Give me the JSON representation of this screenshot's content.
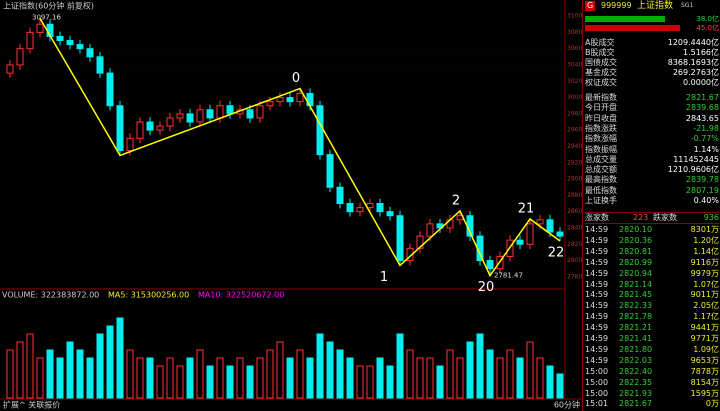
{
  "chart_data": {
    "type": "candlestick",
    "title": "上证指数(60分钟 前复权)",
    "ylim": [
      2770,
      3105
    ],
    "yticks": [
      3100,
      3080,
      3060,
      3040,
      3020,
      3000,
      2980,
      2960,
      2940,
      2920,
      2900,
      2880,
      2860,
      2840,
      2820,
      2800,
      2780
    ],
    "ohlc": [
      [
        3030,
        3046,
        3024,
        3040
      ],
      [
        3040,
        3066,
        3034,
        3060
      ],
      [
        3060,
        3086,
        3054,
        3080
      ],
      [
        3080,
        3097.16,
        3074,
        3090
      ],
      [
        3090,
        3096,
        3069,
        3075
      ],
      [
        3075,
        3081,
        3064,
        3070
      ],
      [
        3070,
        3076,
        3059,
        3065
      ],
      [
        3065,
        3071,
        3054,
        3060
      ],
      [
        3060,
        3066,
        3044,
        3050
      ],
      [
        3050,
        3056,
        3024,
        3030
      ],
      [
        3030,
        3036,
        2984,
        2990
      ],
      [
        2990,
        2996,
        2929,
        2935
      ],
      [
        2935,
        2956,
        2929,
        2950
      ],
      [
        2950,
        2976,
        2944,
        2970
      ],
      [
        2970,
        2976,
        2954,
        2960
      ],
      [
        2960,
        2971,
        2954,
        2965
      ],
      [
        2965,
        2981,
        2959,
        2975
      ],
      [
        2975,
        2986,
        2969,
        2980
      ],
      [
        2980,
        2986,
        2964,
        2970
      ],
      [
        2970,
        2991,
        2964,
        2985
      ],
      [
        2985,
        2991,
        2969,
        2975
      ],
      [
        2975,
        2996,
        2969,
        2990
      ],
      [
        2990,
        2996,
        2974,
        2980
      ],
      [
        2980,
        2991,
        2974,
        2985
      ],
      [
        2985,
        2991,
        2969,
        2975
      ],
      [
        2975,
        2996,
        2969,
        2990
      ],
      [
        2990,
        3001,
        2984,
        2995
      ],
      [
        2995,
        3006,
        2989,
        3000
      ],
      [
        3000,
        3006,
        2989,
        2995
      ],
      [
        2995,
        3011,
        2989,
        3005
      ],
      [
        3005,
        3011,
        2984,
        2990
      ],
      [
        2990,
        2996,
        2924,
        2930
      ],
      [
        2930,
        2936,
        2884,
        2890
      ],
      [
        2890,
        2896,
        2864,
        2870
      ],
      [
        2870,
        2876,
        2854,
        2860
      ],
      [
        2860,
        2871,
        2854,
        2865
      ],
      [
        2865,
        2876,
        2859,
        2870
      ],
      [
        2870,
        2876,
        2854,
        2860
      ],
      [
        2860,
        2866,
        2849,
        2855
      ],
      [
        2855,
        2861,
        2794,
        2800
      ],
      [
        2800,
        2821,
        2794,
        2815
      ],
      [
        2815,
        2836,
        2809,
        2830
      ],
      [
        2830,
        2851,
        2824,
        2845
      ],
      [
        2845,
        2851,
        2834,
        2840
      ],
      [
        2840,
        2856,
        2834,
        2850
      ],
      [
        2850,
        2861,
        2844,
        2855
      ],
      [
        2855,
        2861,
        2824,
        2830
      ],
      [
        2830,
        2836,
        2794,
        2800
      ],
      [
        2800,
        2806,
        2781.47,
        2790
      ],
      [
        2790,
        2811,
        2784,
        2805
      ],
      [
        2805,
        2831,
        2799,
        2825
      ],
      [
        2825,
        2831,
        2814,
        2820
      ],
      [
        2820,
        2851,
        2814,
        2845
      ],
      [
        2845,
        2856,
        2839,
        2850
      ],
      [
        2850,
        2856,
        2829,
        2835
      ],
      [
        2835,
        2841,
        2824,
        2830
      ]
    ],
    "volume": {
      "label": "VOLUME: 322383872.00",
      "ma5": "MA5: 315300256.00",
      "ma10": "MA10: 322520672.00",
      "ylim": [
        0,
        12
      ],
      "values": [
        6,
        7,
        8,
        5,
        6,
        5,
        7,
        6,
        5,
        8,
        9,
        10,
        6,
        5,
        5,
        4,
        5,
        4,
        5,
        6,
        4,
        5,
        4,
        5,
        4,
        5,
        6,
        7,
        5,
        6,
        5,
        8,
        7,
        6,
        5,
        4,
        4,
        5,
        4,
        8,
        6,
        5,
        5,
        4,
        6,
        5,
        7,
        8,
        6,
        5,
        6,
        5,
        7,
        5,
        4,
        3
      ]
    },
    "waves": [
      "0",
      "1",
      "2",
      "20",
      "21",
      "22"
    ],
    "footer": {
      "left": "扩展^ 关联报价",
      "right": "60分钟"
    }
  },
  "panel": {
    "badge": "G",
    "code": "999999",
    "name": "上证指数",
    "tag": "SG1",
    "bars": [
      {
        "value": 38.0,
        "label": "38.0亿"
      },
      {
        "value": 45.0,
        "label": "45.0亿"
      }
    ],
    "stats": [
      [
        "A股成交",
        "1209.4440亿"
      ],
      [
        "B股成交",
        "1.5166亿"
      ],
      [
        "国债成交",
        "8368.1693亿"
      ],
      [
        "基金成交",
        "269.2763亿"
      ],
      [
        "权证成交",
        "0.0000亿"
      ],
      [
        "最新指数",
        "2821.67"
      ],
      [
        "今日开盘",
        "2839.68"
      ],
      [
        "昨日收盘",
        "2843.65"
      ],
      [
        "指数涨跌",
        "-21.98"
      ],
      [
        "指数涨幅",
        "-0.77%"
      ],
      [
        "指数振幅",
        "1.14%"
      ],
      [
        "总成交量",
        "111452445"
      ],
      [
        "总成交额",
        "1210.9606亿"
      ],
      [
        "最高指数",
        "2839.78"
      ],
      [
        "最低指数",
        "2807.19"
      ],
      [
        "上证换手",
        "0.40%"
      ]
    ],
    "breadth": {
      "up_label": "涨家数",
      "up": "223",
      "down_label": "跌家数",
      "down": "936"
    },
    "ticks": [
      [
        "14:59",
        "2820.10",
        "8301万"
      ],
      [
        "14:59",
        "2820.36",
        "1.20亿"
      ],
      [
        "14:59",
        "2820.81",
        "1.14亿"
      ],
      [
        "14:59",
        "2820.99",
        "9116万"
      ],
      [
        "14:59",
        "2820.94",
        "9979万"
      ],
      [
        "14:59",
        "2821.14",
        "1.07亿"
      ],
      [
        "14:59",
        "2821.45",
        "9011万"
      ],
      [
        "14:59",
        "2822.33",
        "2.05亿"
      ],
      [
        "14:59",
        "2821.78",
        "1.17亿"
      ],
      [
        "14:59",
        "2821.21",
        "9441万"
      ],
      [
        "14:59",
        "2821.41",
        "9771万"
      ],
      [
        "14:59",
        "2821.80",
        "1.09亿"
      ],
      [
        "14:59",
        "2822.03",
        "9653万"
      ],
      [
        "15:00",
        "2822.40",
        "7878万"
      ],
      [
        "15:00",
        "2822.35",
        "8154万"
      ],
      [
        "15:00",
        "2821.93",
        "1595万"
      ],
      [
        "15:01",
        "2821.67",
        "0万"
      ]
    ]
  }
}
